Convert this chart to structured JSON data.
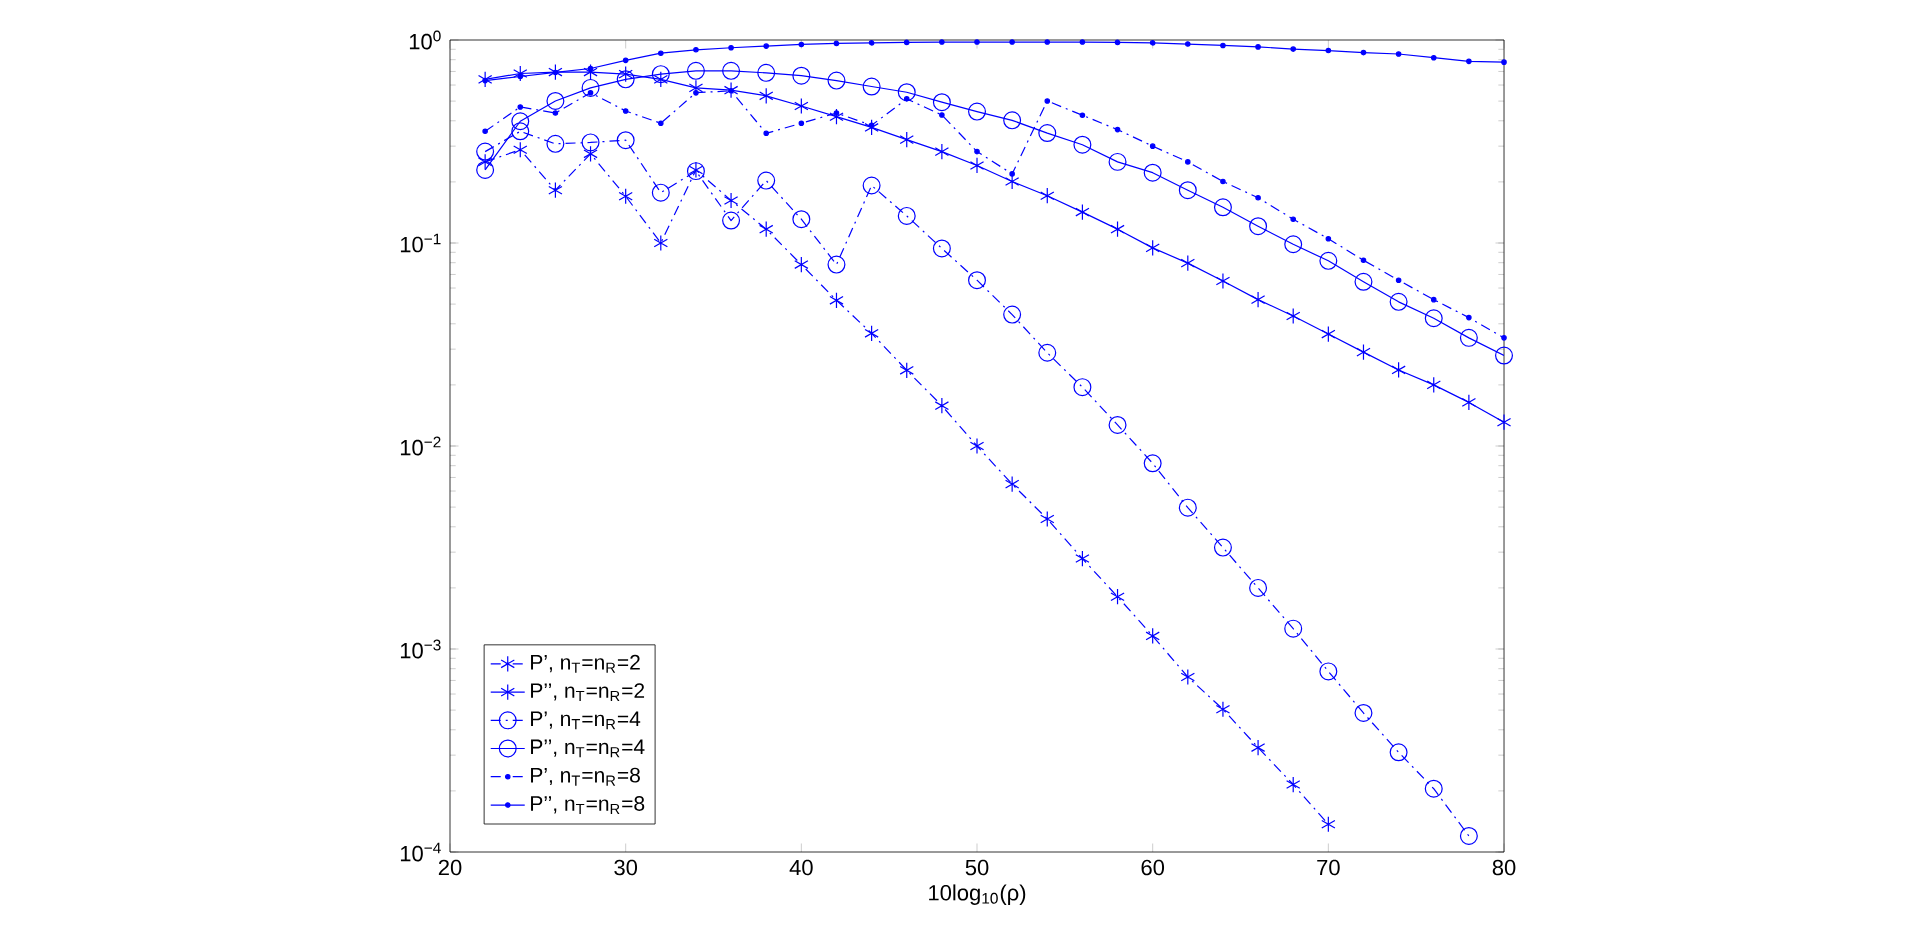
{
  "chart_data": {
    "type": "line",
    "xlabel": "10log$_{10}$(ρ)",
    "log": "y",
    "legend": "bottom left",
    "xlim": [
      20,
      80
    ],
    "ylim": [
      0.0001,
      1
    ],
    "xticks": [
      20,
      30,
      40,
      50,
      60,
      70,
      80
    ],
    "yticks": [
      {
        "value": 0.0001,
        "label": "10$^{−4}$"
      },
      {
        "value": 0.001,
        "label": "10$^{−3}$"
      },
      {
        "value": 0.01,
        "label": "10$^{−2}$"
      },
      {
        "value": 0.1,
        "label": "10$^{−1}$"
      },
      {
        "value": 1,
        "label": "10$^{0}$"
      }
    ],
    "series": [
      {
        "name": "P’, n$_{T}$=n$_{R}$=2",
        "color": "#0000ff",
        "marker": "cross",
        "line_style": "dashdot",
        "x": [
          22,
          24,
          26,
          28,
          30,
          32,
          34,
          36,
          38,
          40,
          42,
          44,
          46,
          48,
          50,
          52,
          54,
          56,
          58,
          60,
          62,
          64,
          66,
          68,
          70
        ],
        "values": [
          0.251,
          0.288,
          0.182,
          0.275,
          0.17,
          0.1,
          0.229,
          0.162,
          0.117,
          0.0783,
          0.0522,
          0.0359,
          0.0236,
          0.0158,
          0.01,
          0.00649,
          0.00437,
          0.00279,
          0.00181,
          0.00116,
          0.000728,
          0.000505,
          0.000327,
          0.000215,
          0.000137
        ]
      },
      {
        "name": "P’’, n$_{T}$=n$_{R}$=2",
        "color": "#0000ff",
        "marker": "cross",
        "line_style": "solid",
        "x": [
          22,
          24,
          26,
          28,
          30,
          32,
          34,
          36,
          38,
          40,
          42,
          44,
          46,
          48,
          50,
          52,
          54,
          56,
          58,
          60,
          62,
          64,
          66,
          68,
          70,
          72,
          74,
          76,
          78,
          80
        ],
        "values": [
          0.64,
          0.684,
          0.695,
          0.695,
          0.679,
          0.64,
          0.581,
          0.566,
          0.531,
          0.473,
          0.419,
          0.371,
          0.323,
          0.282,
          0.241,
          0.201,
          0.171,
          0.142,
          0.117,
          0.0946,
          0.0796,
          0.065,
          0.0526,
          0.0437,
          0.0356,
          0.029,
          0.0237,
          0.02,
          0.0164,
          0.0131
        ]
      },
      {
        "name": "P’, n$_{T}$=n$_{R}$=4",
        "color": "#0000ff",
        "marker": "circle",
        "line_style": "dashdot",
        "x": [
          22,
          24,
          26,
          28,
          30,
          32,
          34,
          36,
          38,
          40,
          42,
          44,
          46,
          48,
          50,
          52,
          54,
          56,
          58,
          60,
          62,
          64,
          66,
          68,
          70,
          72,
          74,
          76,
          78
        ],
        "values": [
          0.282,
          0.355,
          0.308,
          0.313,
          0.321,
          0.177,
          0.226,
          0.129,
          0.203,
          0.131,
          0.0783,
          0.192,
          0.136,
          0.094,
          0.0656,
          0.0444,
          0.0288,
          0.0195,
          0.0127,
          0.00822,
          0.00497,
          0.00316,
          0.002,
          0.00126,
          0.000776,
          0.000484,
          0.00031,
          0.000205,
          0.00012
        ]
      },
      {
        "name": "P’’, n$_{T}$=n$_{R}$=4",
        "color": "#0000ff",
        "marker": "circle",
        "line_style": "solid",
        "x": [
          22,
          24,
          26,
          28,
          30,
          32,
          34,
          36,
          38,
          40,
          42,
          44,
          46,
          48,
          50,
          52,
          54,
          56,
          58,
          60,
          62,
          64,
          66,
          68,
          70,
          72,
          74,
          76,
          78,
          80
        ],
        "values": [
          0.229,
          0.398,
          0.501,
          0.581,
          0.64,
          0.679,
          0.705,
          0.705,
          0.689,
          0.667,
          0.631,
          0.59,
          0.553,
          0.494,
          0.444,
          0.402,
          0.348,
          0.305,
          0.251,
          0.222,
          0.182,
          0.15,
          0.121,
          0.0986,
          0.0817,
          0.0644,
          0.0513,
          0.0426,
          0.0341,
          0.0279
        ]
      },
      {
        "name": "P’, n$_{T}$=n$_{R}$=8",
        "color": "#0000ff",
        "marker": "point",
        "line_style": "dashdot",
        "x": [
          22,
          24,
          26,
          28,
          30,
          32,
          34,
          36,
          38,
          40,
          42,
          44,
          46,
          48,
          50,
          52,
          54,
          56,
          58,
          60,
          62,
          64,
          66,
          68,
          70,
          72,
          74,
          76,
          78,
          80
        ],
        "values": [
          0.355,
          0.468,
          0.437,
          0.55,
          0.447,
          0.389,
          0.55,
          0.562,
          0.347,
          0.389,
          0.437,
          0.38,
          0.513,
          0.427,
          0.282,
          0.219,
          0.501,
          0.426,
          0.362,
          0.3,
          0.251,
          0.201,
          0.167,
          0.131,
          0.105,
          0.0822,
          0.0656,
          0.0526,
          0.0429,
          0.0341
        ]
      },
      {
        "name": "P’’, n$_{T}$=n$_{R}$=8",
        "color": "#0000ff",
        "marker": "point",
        "line_style": "solid",
        "x": [
          22,
          24,
          26,
          28,
          30,
          32,
          34,
          36,
          38,
          40,
          42,
          44,
          46,
          48,
          50,
          52,
          54,
          56,
          58,
          60,
          62,
          64,
          66,
          68,
          70,
          72,
          74,
          76,
          78,
          80
        ],
        "values": [
          0.631,
          0.661,
          0.692,
          0.724,
          0.794,
          0.861,
          0.895,
          0.916,
          0.933,
          0.951,
          0.962,
          0.968,
          0.973,
          0.977,
          0.977,
          0.977,
          0.977,
          0.977,
          0.973,
          0.968,
          0.955,
          0.94,
          0.925,
          0.902,
          0.887,
          0.867,
          0.853,
          0.818,
          0.785,
          0.778
        ]
      }
    ]
  }
}
